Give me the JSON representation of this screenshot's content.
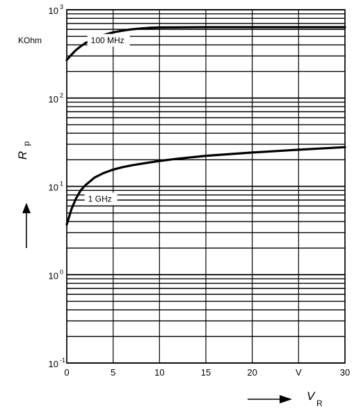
{
  "chart_data": {
    "type": "line",
    "title": "",
    "y_unit": "KOhm",
    "y_label": {
      "main": "R",
      "sub": "p"
    },
    "x_label": {
      "main": "V",
      "sub": "R"
    },
    "x_unit": "V",
    "ylog": true,
    "xlim": [
      0,
      30
    ],
    "ylim": [
      0.1,
      1000
    ],
    "x_ticks": [
      "0",
      "5",
      "10",
      "15",
      "20",
      "30"
    ],
    "x_unit_position": 25,
    "y_ticks": [
      {
        "base": "10",
        "exp": "-1",
        "value": 0.1
      },
      {
        "base": "10",
        "exp": "0",
        "value": 1
      },
      {
        "base": "10",
        "exp": "1",
        "value": 10
      },
      {
        "base": "10",
        "exp": "2",
        "value": 100
      },
      {
        "base": "10",
        "exp": "3",
        "value": 1000
      }
    ],
    "grid": true,
    "series": [
      {
        "name": "100 MHz",
        "label_x": 2.6,
        "label_y": 420,
        "x": [
          0,
          0.5,
          1,
          1.5,
          2,
          3,
          4,
          5,
          6,
          7,
          8,
          9,
          10,
          15,
          20,
          25,
          30
        ],
        "y": [
          270,
          310,
          350,
          385,
          420,
          470,
          520,
          555,
          580,
          600,
          615,
          625,
          630,
          635,
          635,
          635,
          635
        ]
      },
      {
        "name": "1 GHz",
        "label_x": 2.3,
        "label_y": 6.7,
        "x": [
          0,
          0.25,
          0.5,
          1,
          1.5,
          2,
          3,
          4,
          5,
          6,
          7,
          8,
          10,
          12,
          15,
          20,
          25,
          30
        ],
        "y": [
          3.7,
          4.5,
          5.5,
          7.3,
          9.0,
          10.3,
          12.6,
          14.2,
          15.5,
          16.5,
          17.3,
          18.0,
          19.4,
          20.6,
          22.2,
          24.2,
          26.0,
          27.8
        ]
      }
    ]
  }
}
